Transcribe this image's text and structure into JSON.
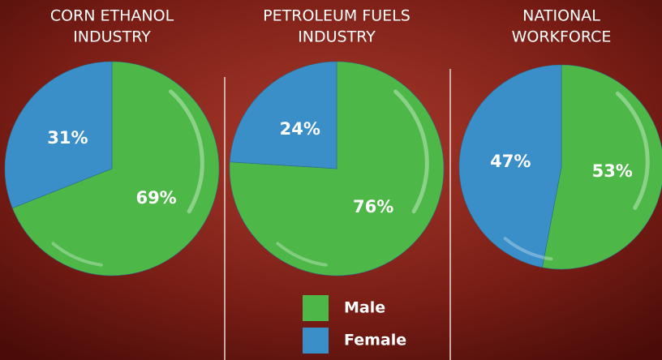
{
  "chart_data": [
    {
      "type": "pie",
      "title": [
        "CORN ETHANOL",
        "INDUSTRY"
      ],
      "values": [
        69,
        31
      ],
      "value_labels": [
        "69%",
        "31%"
      ]
    },
    {
      "type": "pie",
      "title": [
        "PETROLEUM FUELS",
        "INDUSTRY"
      ],
      "values": [
        76,
        24
      ],
      "value_labels": [
        "76%",
        "24%"
      ]
    },
    {
      "type": "pie",
      "title": [
        "NATIONAL",
        "WORKFORCE"
      ],
      "values": [
        53,
        47
      ],
      "value_labels": [
        "53%",
        "47%"
      ]
    }
  ],
  "legend": [
    {
      "name": "Male",
      "color": "#4db848"
    },
    {
      "name": "Female",
      "color": "#3a8fc8"
    }
  ]
}
